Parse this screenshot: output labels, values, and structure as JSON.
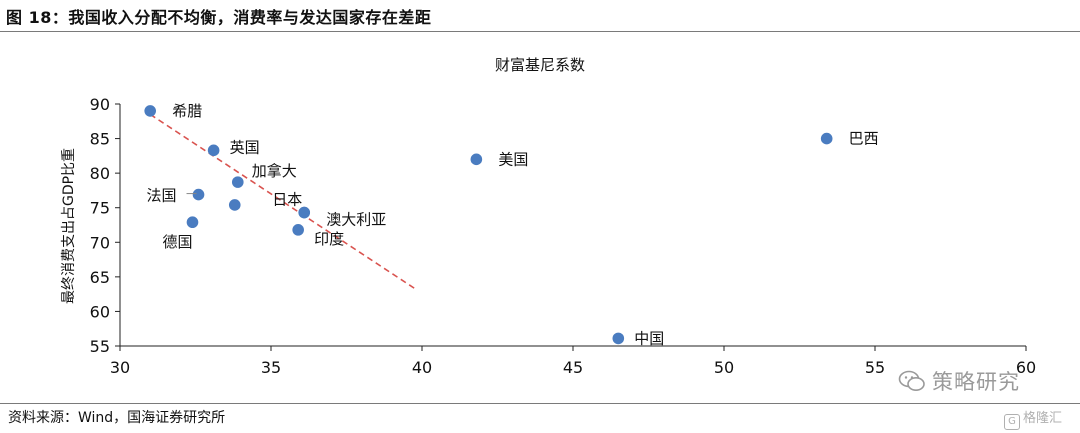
{
  "header": {
    "title": "图 18：我国收入分配不均衡，消费率与发达国家存在差距"
  },
  "footer": {
    "source": "资料来源：Wind，国海证券研究所"
  },
  "watermark": {
    "text": "策略研究",
    "icon": "wechat-icon"
  },
  "brand": {
    "text": "格隆汇",
    "icon": "g-logo-icon"
  },
  "colors": {
    "point": "#4a7cc0",
    "trend": "#d9534f",
    "axis": "#222222"
  },
  "chart_data": {
    "type": "scatter",
    "title": "财富基尼系数",
    "xlabel": "",
    "ylabel": "最终消费支出占GDP比重",
    "xlim": [
      30,
      60
    ],
    "ylim": [
      55,
      90
    ],
    "xticks": [
      30,
      35,
      40,
      45,
      50,
      55,
      60
    ],
    "yticks": [
      55,
      60,
      65,
      70,
      75,
      80,
      85,
      90
    ],
    "grid": false,
    "points": [
      {
        "label": "希腊",
        "x": 31.0,
        "y": 89.0
      },
      {
        "label": "英国",
        "x": 33.1,
        "y": 83.3
      },
      {
        "label": "加拿大",
        "x": 33.9,
        "y": 78.7
      },
      {
        "label": "法国",
        "x": 32.6,
        "y": 76.9
      },
      {
        "label": "",
        "x": 33.8,
        "y": 75.4
      },
      {
        "label": "日本",
        "x": 36.1,
        "y": 74.3
      },
      {
        "label": "德国",
        "x": 32.4,
        "y": 72.9
      },
      {
        "label": "印度",
        "x": 35.9,
        "y": 71.8
      },
      {
        "label": "澳大利亚",
        "x": 36.1,
        "y": 74.3
      },
      {
        "label": "美国",
        "x": 41.8,
        "y": 82.0
      },
      {
        "label": "巴西",
        "x": 53.4,
        "y": 85.0
      },
      {
        "label": "中国",
        "x": 46.5,
        "y": 56.1
      }
    ],
    "trendline": {
      "x": [
        31.0,
        39.8
      ],
      "y": [
        88.5,
        63.2
      ]
    }
  }
}
